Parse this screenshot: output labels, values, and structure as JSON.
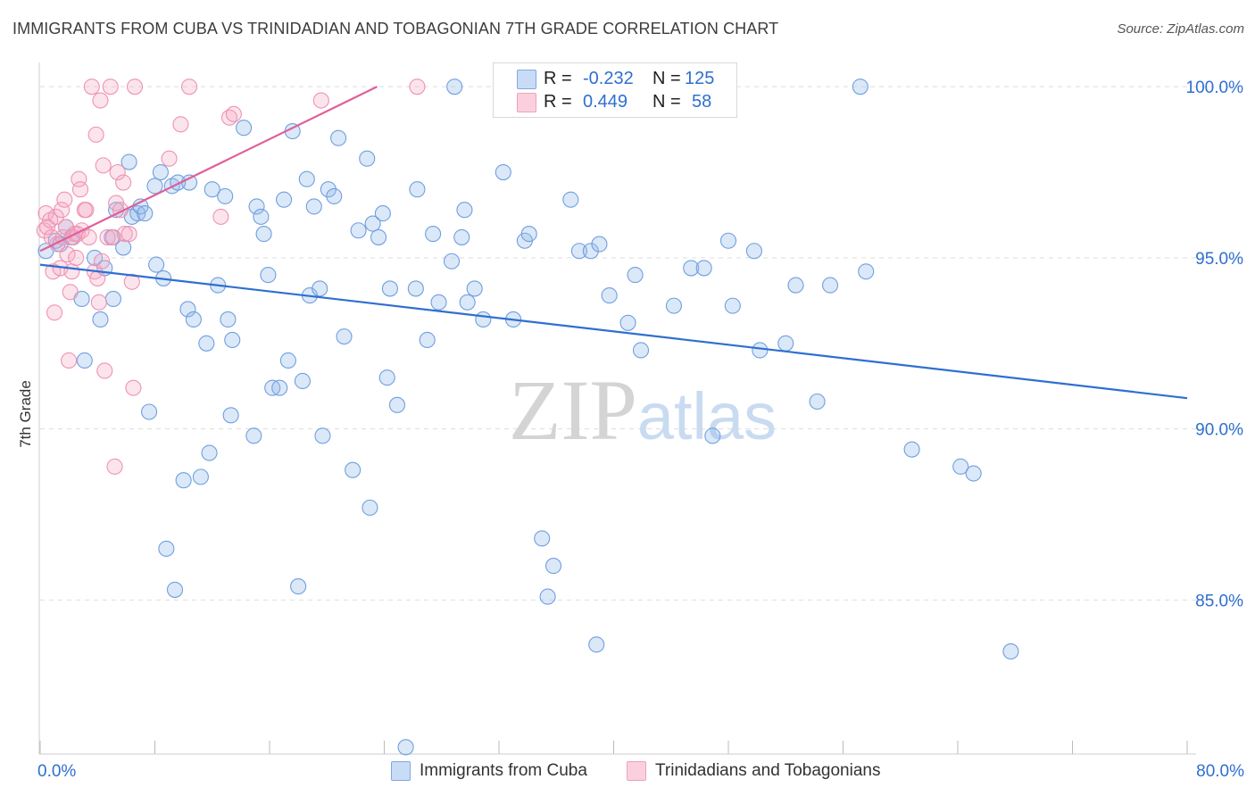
{
  "chart_data": {
    "type": "scatter",
    "title": "IMMIGRANTS FROM CUBA VS TRINIDADIAN AND TOBAGONIAN 7TH GRADE CORRELATION CHART",
    "source": "Source: ZipAtlas.com",
    "watermark": "ZIPatlas",
    "xlabel": "",
    "ylabel": "7th Grade",
    "xlim": [
      0,
      80
    ],
    "ylim": [
      80.5,
      100.5
    ],
    "x_tick_labels": [
      "0.0%",
      "80.0%"
    ],
    "y_ticks": [
      85,
      90,
      95,
      100
    ],
    "y_tick_labels": [
      "85.0%",
      "90.0%",
      "95.0%",
      "100.0%"
    ],
    "legend": {
      "position": "top-center",
      "rows": [
        {
          "r_label": "R =",
          "r_value": "-0.232",
          "n_label": "N =",
          "n_value": "125"
        },
        {
          "r_label": "R =",
          "r_value": "0.449",
          "n_label": "N =",
          "n_value": "58"
        }
      ]
    },
    "series": [
      {
        "name": "Immigrants from Cuba",
        "color": "#8fb6e8",
        "line_color": "#2f6fcf",
        "trend": {
          "x": [
            0,
            80
          ],
          "y": [
            94.8,
            90.9
          ]
        },
        "points": [
          [
            0.4,
            95.2
          ],
          [
            1.1,
            95.5
          ],
          [
            1.4,
            95.4
          ],
          [
            1.8,
            95.9
          ],
          [
            2.2,
            95.6
          ],
          [
            2.9,
            93.8
          ],
          [
            3.1,
            92.0
          ],
          [
            3.8,
            95.0
          ],
          [
            4.2,
            93.2
          ],
          [
            4.5,
            94.7
          ],
          [
            5.0,
            95.6
          ],
          [
            5.1,
            93.8
          ],
          [
            5.3,
            96.4
          ],
          [
            5.8,
            95.3
          ],
          [
            6.2,
            97.8
          ],
          [
            6.4,
            96.2
          ],
          [
            6.8,
            96.3
          ],
          [
            7.0,
            96.5
          ],
          [
            7.3,
            96.3
          ],
          [
            7.6,
            90.5
          ],
          [
            8.0,
            97.1
          ],
          [
            8.1,
            94.8
          ],
          [
            8.4,
            97.5
          ],
          [
            8.6,
            94.4
          ],
          [
            8.8,
            86.5
          ],
          [
            9.2,
            97.1
          ],
          [
            9.4,
            85.3
          ],
          [
            9.6,
            97.2
          ],
          [
            10.0,
            88.5
          ],
          [
            10.3,
            93.5
          ],
          [
            10.4,
            97.2
          ],
          [
            10.7,
            93.2
          ],
          [
            11.2,
            88.6
          ],
          [
            11.6,
            92.5
          ],
          [
            11.8,
            89.3
          ],
          [
            12.0,
            97.0
          ],
          [
            12.4,
            94.2
          ],
          [
            12.9,
            96.8
          ],
          [
            13.1,
            93.2
          ],
          [
            13.3,
            90.4
          ],
          [
            13.4,
            92.6
          ],
          [
            14.2,
            98.8
          ],
          [
            14.9,
            89.8
          ],
          [
            15.1,
            96.5
          ],
          [
            15.4,
            96.2
          ],
          [
            15.6,
            95.7
          ],
          [
            15.9,
            94.5
          ],
          [
            16.2,
            91.2
          ],
          [
            16.7,
            91.2
          ],
          [
            17.0,
            96.7
          ],
          [
            17.3,
            92.0
          ],
          [
            17.6,
            98.7
          ],
          [
            18.0,
            85.4
          ],
          [
            18.3,
            91.4
          ],
          [
            18.6,
            97.3
          ],
          [
            18.8,
            93.9
          ],
          [
            19.1,
            96.5
          ],
          [
            19.5,
            94.1
          ],
          [
            19.7,
            89.8
          ],
          [
            20.1,
            97.0
          ],
          [
            20.5,
            96.8
          ],
          [
            20.8,
            98.5
          ],
          [
            21.2,
            92.7
          ],
          [
            21.8,
            88.8
          ],
          [
            22.2,
            95.8
          ],
          [
            22.8,
            97.9
          ],
          [
            23.0,
            87.7
          ],
          [
            23.2,
            96.0
          ],
          [
            23.6,
            95.6
          ],
          [
            23.9,
            96.3
          ],
          [
            24.2,
            91.5
          ],
          [
            24.4,
            94.1
          ],
          [
            24.9,
            90.7
          ],
          [
            25.5,
            80.7
          ],
          [
            26.2,
            94.1
          ],
          [
            26.3,
            97.0
          ],
          [
            27.0,
            92.6
          ],
          [
            27.4,
            95.7
          ],
          [
            27.8,
            93.7
          ],
          [
            28.7,
            94.9
          ],
          [
            28.9,
            100.0
          ],
          [
            29.4,
            95.6
          ],
          [
            29.6,
            96.4
          ],
          [
            29.8,
            93.7
          ],
          [
            30.3,
            94.1
          ],
          [
            30.9,
            93.2
          ],
          [
            32.3,
            97.5
          ],
          [
            33.0,
            93.2
          ],
          [
            33.8,
            95.5
          ],
          [
            34.1,
            95.7
          ],
          [
            35.0,
            86.8
          ],
          [
            35.4,
            85.1
          ],
          [
            35.8,
            86.0
          ],
          [
            37.0,
            96.7
          ],
          [
            37.6,
            95.2
          ],
          [
            38.4,
            95.2
          ],
          [
            38.8,
            83.7
          ],
          [
            39.0,
            95.4
          ],
          [
            39.7,
            93.9
          ],
          [
            41.0,
            93.1
          ],
          [
            41.5,
            94.5
          ],
          [
            41.9,
            92.3
          ],
          [
            44.2,
            93.6
          ],
          [
            45.4,
            94.7
          ],
          [
            46.3,
            94.7
          ],
          [
            46.9,
            89.8
          ],
          [
            48.0,
            95.5
          ],
          [
            48.3,
            93.6
          ],
          [
            49.8,
            95.2
          ],
          [
            50.2,
            92.3
          ],
          [
            52.0,
            92.5
          ],
          [
            52.7,
            94.2
          ],
          [
            54.2,
            90.8
          ],
          [
            55.1,
            94.2
          ],
          [
            57.2,
            100.0
          ],
          [
            57.6,
            94.6
          ],
          [
            60.8,
            89.4
          ],
          [
            64.2,
            88.9
          ],
          [
            65.1,
            88.7
          ],
          [
            67.7,
            83.5
          ]
        ]
      },
      {
        "name": "Trinidadians and Tobagonians",
        "color": "#f4a6c0",
        "line_color": "#e0609a",
        "trend": {
          "x": [
            0,
            23.5
          ],
          "y": [
            95.2,
            100.0
          ]
        },
        "points": [
          [
            0.3,
            95.8
          ],
          [
            0.4,
            96.3
          ],
          [
            0.5,
            95.9
          ],
          [
            0.7,
            96.1
          ],
          [
            0.8,
            95.6
          ],
          [
            0.9,
            94.6
          ],
          [
            1.0,
            93.4
          ],
          [
            1.1,
            96.2
          ],
          [
            1.2,
            95.4
          ],
          [
            1.4,
            94.7
          ],
          [
            1.5,
            96.4
          ],
          [
            1.6,
            95.6
          ],
          [
            1.7,
            96.7
          ],
          [
            1.8,
            95.9
          ],
          [
            1.9,
            95.1
          ],
          [
            2.0,
            92.0
          ],
          [
            2.1,
            94.0
          ],
          [
            2.2,
            94.6
          ],
          [
            2.3,
            95.6
          ],
          [
            2.4,
            95.7
          ],
          [
            2.5,
            95.0
          ],
          [
            2.6,
            95.7
          ],
          [
            2.7,
            97.3
          ],
          [
            2.8,
            97.0
          ],
          [
            2.9,
            95.8
          ],
          [
            3.1,
            96.4
          ],
          [
            3.2,
            96.4
          ],
          [
            3.4,
            95.6
          ],
          [
            3.6,
            100.0
          ],
          [
            3.8,
            94.6
          ],
          [
            3.9,
            98.6
          ],
          [
            4.0,
            94.4
          ],
          [
            4.1,
            93.7
          ],
          [
            4.2,
            99.6
          ],
          [
            4.3,
            94.9
          ],
          [
            4.4,
            97.7
          ],
          [
            4.5,
            91.7
          ],
          [
            4.7,
            95.6
          ],
          [
            4.9,
            100.0
          ],
          [
            5.1,
            95.6
          ],
          [
            5.2,
            88.9
          ],
          [
            5.3,
            96.6
          ],
          [
            5.4,
            97.5
          ],
          [
            5.6,
            96.4
          ],
          [
            5.8,
            97.2
          ],
          [
            5.9,
            95.7
          ],
          [
            6.2,
            95.7
          ],
          [
            6.4,
            94.3
          ],
          [
            6.5,
            91.2
          ],
          [
            6.6,
            100.0
          ],
          [
            9.0,
            97.9
          ],
          [
            9.8,
            98.9
          ],
          [
            10.4,
            100.0
          ],
          [
            12.6,
            96.2
          ],
          [
            13.2,
            99.1
          ],
          [
            13.5,
            99.2
          ],
          [
            19.6,
            99.6
          ],
          [
            26.3,
            100.0
          ]
        ]
      }
    ]
  }
}
